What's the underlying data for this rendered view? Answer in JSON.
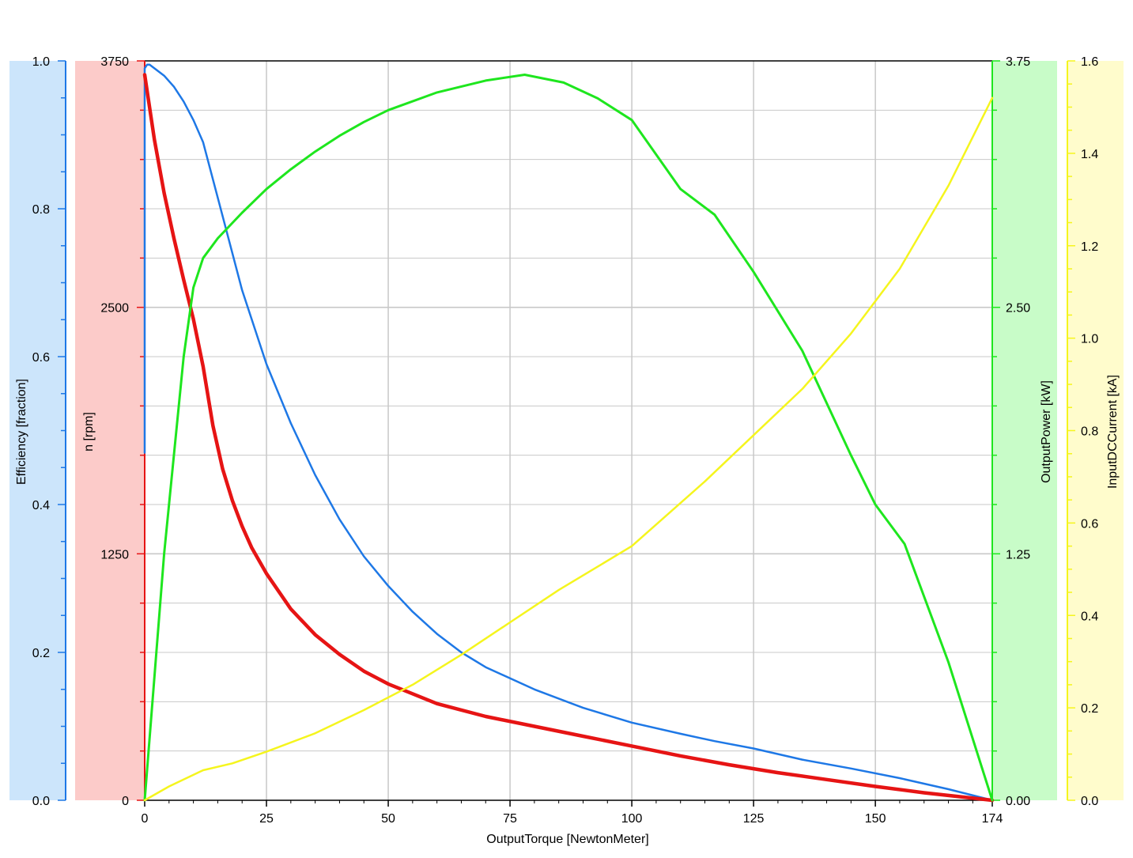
{
  "chart_data": {
    "type": "line",
    "title": "",
    "grid": true,
    "colors": {
      "efficiency": "#1e78e6",
      "speed": "#e61414",
      "power": "#1ee61e",
      "current": "#f5f51e",
      "efficiency_band": "#cce5fb",
      "speed_band": "#fccbc9",
      "power_band": "#c8fcc8",
      "current_band": "#fffccc",
      "grid": "#c8c8c8"
    },
    "x_axis": {
      "label": "OutputTorque [NewtonMeter]",
      "range": [
        0,
        174
      ],
      "ticks": [
        0,
        25,
        50,
        75,
        100,
        125,
        150,
        174
      ],
      "tick_labels": [
        "0",
        "25",
        "50",
        "75",
        "100",
        "125",
        "150",
        "174"
      ]
    },
    "y_axes": [
      {
        "id": "efficiency",
        "label": "Efficiency [fraction]",
        "range": [
          0,
          1.0
        ],
        "ticks": [
          0,
          0.2,
          0.4,
          0.6,
          0.8,
          1.0
        ],
        "tick_labels": [
          "0.0",
          "0.2",
          "0.4",
          "0.6",
          "0.8",
          "1.0"
        ]
      },
      {
        "id": "speed",
        "label": "n [rpm]",
        "range": [
          0,
          3750
        ],
        "ticks": [
          0,
          1250,
          2500,
          3750
        ],
        "tick_labels": [
          "0",
          "1250",
          "2500",
          "3750"
        ]
      },
      {
        "id": "power",
        "label": "OutputPower [kW]",
        "range": [
          0,
          3.75
        ],
        "ticks": [
          0,
          1.25,
          2.5,
          3.75
        ],
        "tick_labels": [
          "0.00",
          "1.25",
          "2.50",
          "3.75"
        ]
      },
      {
        "id": "current",
        "label": "InputDCCurrent [kA]",
        "range": [
          0,
          1.6
        ],
        "ticks": [
          0,
          0.2,
          0.4,
          0.6,
          0.8,
          1.0,
          1.2,
          1.4,
          1.6
        ],
        "tick_labels": [
          "0.0",
          "0.2",
          "0.4",
          "0.6",
          "0.8",
          "1.0",
          "1.2",
          "1.4",
          "1.6"
        ]
      }
    ],
    "series": [
      {
        "id": "efficiency",
        "axis": "efficiency",
        "x": [
          0,
          0,
          0.5,
          1,
          2,
          4,
          6,
          8,
          10,
          12,
          16,
          20,
          25,
          30,
          35,
          40,
          45,
          50,
          55,
          60,
          65,
          70,
          80,
          90,
          100,
          110,
          117,
          125,
          135,
          145,
          155,
          165,
          174
        ],
        "y": [
          0.47,
          0.99,
          0.995,
          0.995,
          0.99,
          0.98,
          0.965,
          0.945,
          0.92,
          0.89,
          0.79,
          0.69,
          0.59,
          0.51,
          0.44,
          0.38,
          0.33,
          0.29,
          0.255,
          0.225,
          0.2,
          0.18,
          0.15,
          0.125,
          0.105,
          0.09,
          0.08,
          0.07,
          0.055,
          0.043,
          0.03,
          0.015,
          0
        ]
      },
      {
        "id": "speed",
        "axis": "speed",
        "x": [
          0,
          2,
          4,
          6,
          8,
          10,
          12,
          14,
          16,
          18,
          20,
          22,
          25,
          30,
          35,
          40,
          45,
          50,
          60,
          70,
          80,
          90,
          100,
          110,
          120,
          130,
          140,
          150,
          160,
          174
        ],
        "y": [
          3680,
          3350,
          3080,
          2850,
          2640,
          2440,
          2200,
          1900,
          1680,
          1520,
          1390,
          1280,
          1150,
          970,
          840,
          740,
          655,
          590,
          490,
          425,
          375,
          325,
          275,
          225,
          180,
          140,
          105,
          70,
          38,
          0
        ]
      },
      {
        "id": "power",
        "axis": "power",
        "x": [
          0,
          4,
          8,
          10,
          12,
          15,
          20,
          25,
          30,
          35,
          40,
          45,
          50,
          60,
          70,
          78,
          86,
          93,
          100,
          110,
          117,
          125,
          135,
          145,
          150,
          156,
          165,
          174
        ],
        "y": [
          0,
          1.25,
          2.25,
          2.6,
          2.75,
          2.85,
          2.98,
          3.1,
          3.2,
          3.29,
          3.37,
          3.44,
          3.5,
          3.59,
          3.65,
          3.68,
          3.64,
          3.56,
          3.45,
          3.1,
          2.97,
          2.68,
          2.28,
          1.75,
          1.5,
          1.3,
          0.7,
          0
        ]
      },
      {
        "id": "current",
        "axis": "current",
        "x": [
          0,
          5,
          12,
          18,
          25,
          35,
          45,
          55,
          65,
          75,
          85,
          100,
          115,
          125,
          135,
          145,
          155,
          165,
          174
        ],
        "y": [
          0,
          0.03,
          0.065,
          0.08,
          0.105,
          0.145,
          0.195,
          0.25,
          0.315,
          0.385,
          0.455,
          0.55,
          0.69,
          0.79,
          0.89,
          1.01,
          1.15,
          1.33,
          1.52
        ]
      }
    ]
  }
}
